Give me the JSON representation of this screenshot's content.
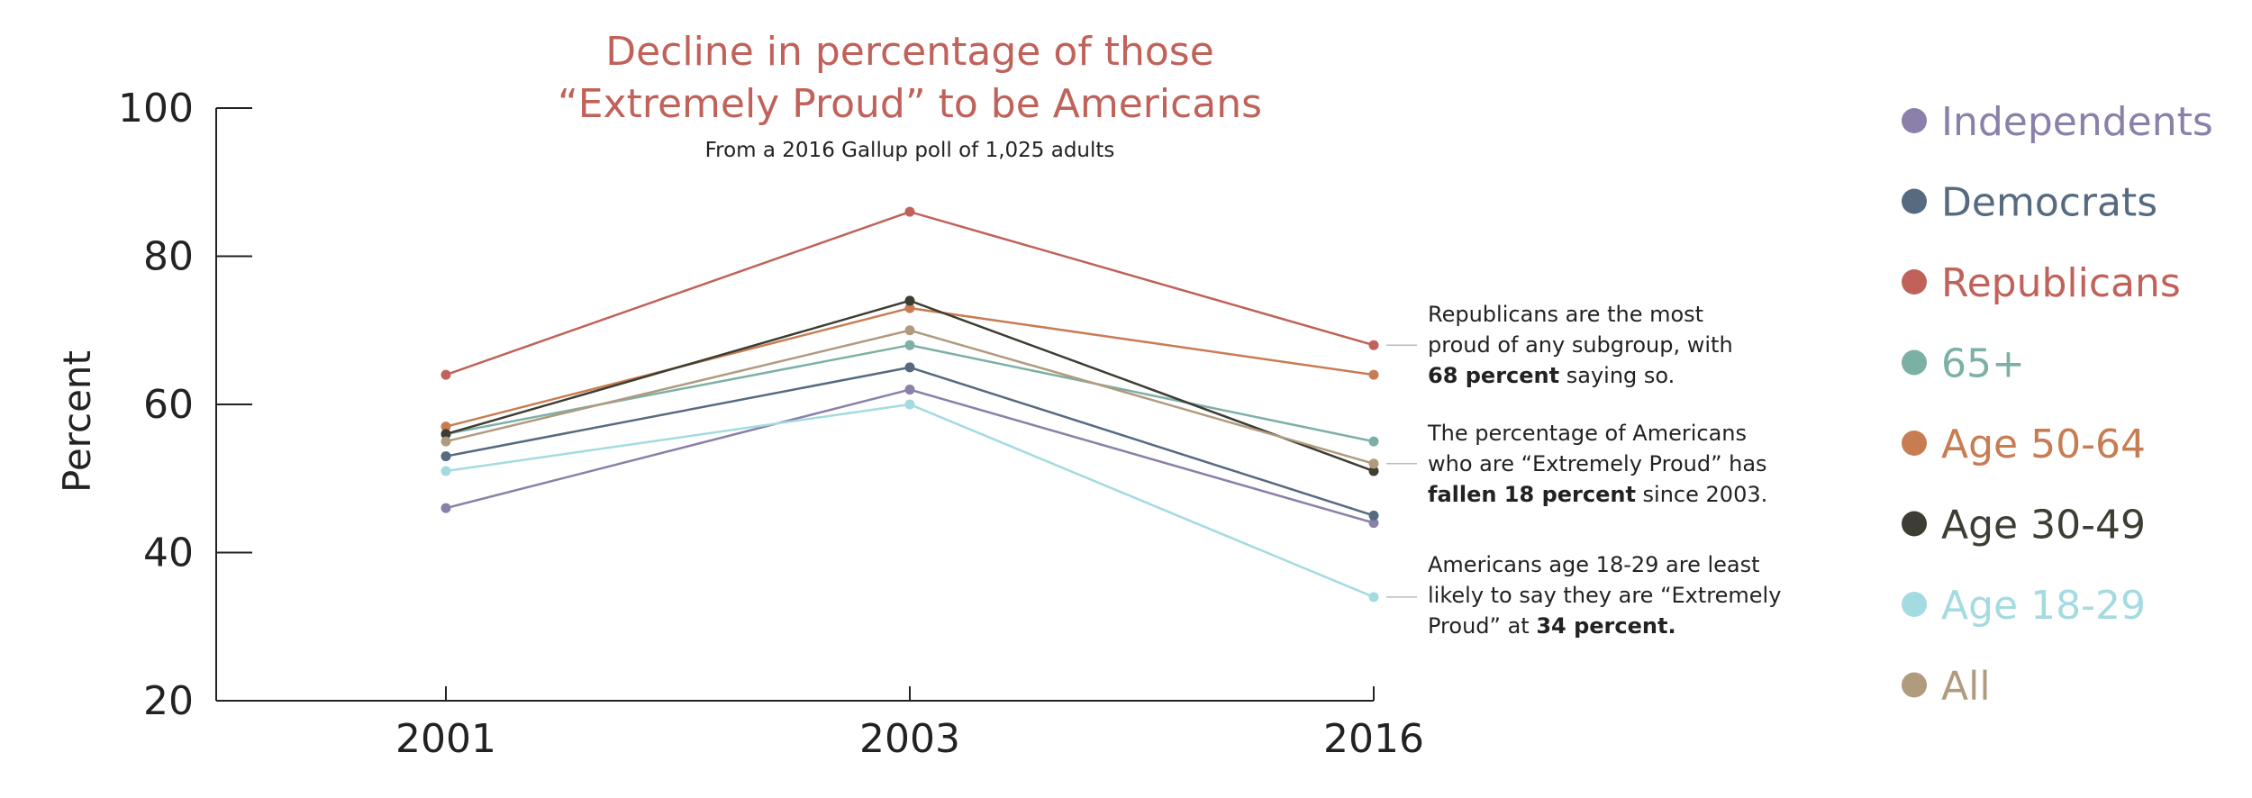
{
  "chart_data": {
    "type": "line",
    "title_line1": "Decline in percentage of those",
    "title_line2": "“Extremely Proud” to be Americans",
    "subtitle": "From a 2016 Gallup poll of 1,025 adults",
    "ylabel": "Percent",
    "xlabel": "",
    "x": [
      "2001",
      "2003",
      "2016"
    ],
    "ylim": [
      20,
      100
    ],
    "yticks": [
      20,
      40,
      60,
      80,
      100
    ],
    "title_color": "#c0625a",
    "series": [
      {
        "name": "Independents",
        "color": "#8a80a9",
        "values": [
          46,
          62,
          44
        ]
      },
      {
        "name": "Democrats",
        "color": "#566a80",
        "values": [
          53,
          65,
          45
        ]
      },
      {
        "name": "Republicans",
        "color": "#c0625a",
        "values": [
          64,
          86,
          68
        ]
      },
      {
        "name": "65+",
        "color": "#7cb0a6",
        "values": [
          56,
          68,
          55
        ]
      },
      {
        "name": "Age 50-64",
        "color": "#c87c52",
        "values": [
          57,
          73,
          64
        ]
      },
      {
        "name": "Age 30-49",
        "color": "#3d3d33",
        "values": [
          56,
          74,
          51
        ]
      },
      {
        "name": "Age 18-29",
        "color": "#a3dbe0",
        "values": [
          51,
          60,
          34
        ]
      },
      {
        "name": "All",
        "color": "#b09b7e",
        "values": [
          55,
          70,
          52
        ]
      }
    ],
    "annotations": [
      {
        "series": "Republicans",
        "line1": "Republicans are the most",
        "line2": "proud of any subgroup, with",
        "bold": "68 percent",
        "after": " saying so."
      },
      {
        "series": "All",
        "line1": "The percentage of Americans",
        "line2": "who are “Extremely Proud” has",
        "bold": "fallen 18 percent",
        "after": " since 2003."
      },
      {
        "series": "Age 18-29",
        "line1": "Americans age 18-29 are least",
        "line2": "likely to say they are “Extremely",
        "before": "Proud” at ",
        "bold": "34 percent."
      }
    ]
  }
}
